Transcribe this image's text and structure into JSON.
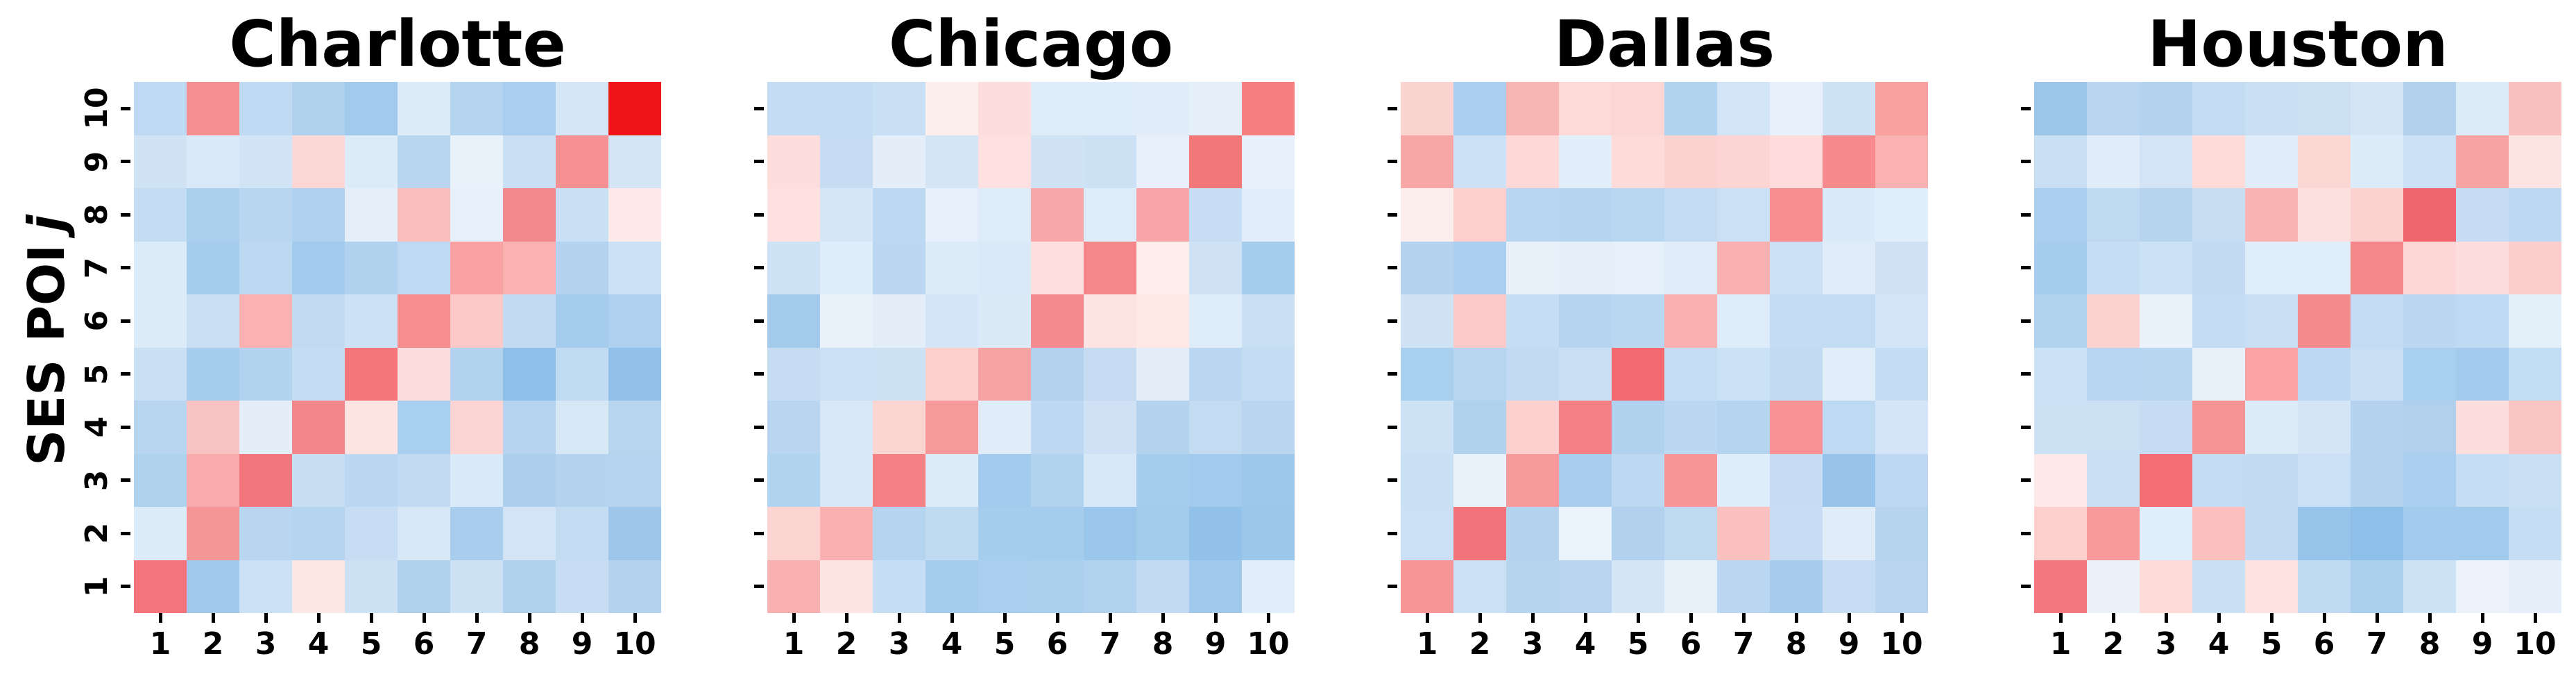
{
  "figure": {
    "ylabel": {
      "text": "SES POI",
      "variable": "j"
    },
    "x_tick_labels": [
      "1",
      "2",
      "3",
      "4",
      "5",
      "6",
      "7",
      "8",
      "9",
      "10"
    ],
    "y_tick_labels": [
      "1",
      "2",
      "3",
      "4",
      "5",
      "6",
      "7",
      "8",
      "9",
      "10"
    ],
    "text_color": "#000000",
    "background_color": "#ffffff"
  },
  "chart_data": {
    "type": "heatmap",
    "grid": false,
    "x_range": [
      1,
      10
    ],
    "y_range": [
      1,
      10
    ],
    "xlabel": "",
    "ylabel": "SES POI j",
    "legend": "none",
    "colormap": {
      "low": "#8ebfe8",
      "mid": "#f7f7f7",
      "high": "#ee1418"
    },
    "cell_order": "rows listed top (j=10) to bottom (j=1); columns i=1..10 left to right; values are sampled cell colors",
    "panels": [
      {
        "city": "Charlotte",
        "cells": [
          [
            "#bed9f2",
            "#f58e90",
            "#bfdaf2",
            "#b0d2ef",
            "#a2caec",
            "#dcebf8",
            "#b5d4f0",
            "#a9ceee",
            "#d5e6f6",
            "#ee1418"
          ],
          [
            "#cfe3f5",
            "#d9e9f7",
            "#d1e4f5",
            "#fbd8d6",
            "#dcebf8",
            "#b9d6f1",
            "#e9f2fb",
            "#c9dff4",
            "#f59194",
            "#d4e6f6"
          ],
          [
            "#c5ddf3",
            "#abd0ee",
            "#b9d6f1",
            "#add1ef",
            "#e5effa",
            "#f9bebd",
            "#e5f0fa",
            "#f4898d",
            "#c9dff4",
            "#fdeae8"
          ],
          [
            "#dcebf8",
            "#a6cdee",
            "#bdd8f1",
            "#a3cbed",
            "#b0d2ef",
            "#bfd9f2",
            "#f9a2a3",
            "#fab1b1",
            "#b3d3f0",
            "#cce1f5"
          ],
          [
            "#dcebf8",
            "#c8dff4",
            "#f9b1b2",
            "#c2dbf3",
            "#cce1f5",
            "#f68e90",
            "#fcc9c8",
            "#c2dbf3",
            "#a5cced",
            "#aed1ef"
          ],
          [
            "#c9e0f4",
            "#a6cdee",
            "#b2d3ef",
            "#c5ddf3",
            "#f4767b",
            "#fddddd",
            "#b2d3ef",
            "#8dbfe8",
            "#c1dbf2",
            "#91c1e9"
          ],
          [
            "#b8d5f0",
            "#f9c3c4",
            "#e4eef9",
            "#f3868b",
            "#fde3e2",
            "#a9cfee",
            "#fcd4d3",
            "#b6d4f0",
            "#d6e7f6",
            "#b8d5f0"
          ],
          [
            "#aed1ee",
            "#f8abad",
            "#f3767c",
            "#c8def3",
            "#bcd7f1",
            "#c2daf2",
            "#dbeaf8",
            "#accfee",
            "#b4d3ef",
            "#b6d4f0"
          ],
          [
            "#dcebf8",
            "#f69598",
            "#b9d5f0",
            "#b5d4f0",
            "#c6ddf3",
            "#d6e7f6",
            "#a9ceed",
            "#d2e4f5",
            "#c4dcf2",
            "#9dc6ea"
          ],
          [
            "#f3747b",
            "#a2c9eb",
            "#cbe0f4",
            "#fde7e5",
            "#cde1f4",
            "#b0d1ee",
            "#cde1f4",
            "#b0d1ee",
            "#c6ddf3",
            "#b5d3ef"
          ]
        ]
      },
      {
        "city": "Chicago",
        "cells": [
          [
            "#c5ddf4",
            "#c5ddf4",
            "#c9dff3",
            "#fbeeec",
            "#fddddd",
            "#ddecf8",
            "#ddecf8",
            "#e0edf9",
            "#e4effa",
            "#f57e80"
          ],
          [
            "#fedddd",
            "#c5dcf3",
            "#e3eef9",
            "#d4e6f6",
            "#fee0e0",
            "#cfe3f5",
            "#cde1f5",
            "#e7f0fa",
            "#f37679",
            "#e8f1fb"
          ],
          [
            "#fee1e0",
            "#d5e6f6",
            "#bdd8f1",
            "#e7f0fa",
            "#ddecf8",
            "#f9a8a9",
            "#deecf8",
            "#f9a4a6",
            "#c6ddf4",
            "#e2eef9"
          ],
          [
            "#cee2f5",
            "#dfecf9",
            "#bcd7f1",
            "#dcebf8",
            "#d9e9f7",
            "#fddfde",
            "#f5878a",
            "#fdeeec",
            "#cfe2f5",
            "#a7cdec"
          ],
          [
            "#a3c9eb",
            "#e9f1fa",
            "#e3eef9",
            "#d3e5f6",
            "#dceaf8",
            "#f48a8d",
            "#fde3e1",
            "#fde8e6",
            "#dfecf9",
            "#c9dff3"
          ],
          [
            "#c5dcf2",
            "#cbe0f4",
            "#cde1f4",
            "#fbd0cd",
            "#f7a2a3",
            "#b3d2ef",
            "#c5dcf2",
            "#e3eef9",
            "#bbd6f0",
            "#c4dcf2"
          ],
          [
            "#b9d5f0",
            "#d8e8f7",
            "#fbd5d2",
            "#f5999b",
            "#e0edf9",
            "#bed8f1",
            "#cfe2f5",
            "#b4d3ef",
            "#c4dcf2",
            "#b9d5f0"
          ],
          [
            "#b0d3f0",
            "#d8e8f7",
            "#f58185",
            "#dcebf8",
            "#a3cbed",
            "#b2d4f0",
            "#d7e8f7",
            "#a5cced",
            "#a2caec",
            "#9dc7eb"
          ],
          [
            "#fcd5d3",
            "#f9b0b1",
            "#b5d4f0",
            "#c0daf2",
            "#a7cdee",
            "#a6cced",
            "#9bc6eb",
            "#a3cbec",
            "#92c1e9",
            "#9cc6ea"
          ],
          [
            "#f9b0b1",
            "#fde5e3",
            "#c6def4",
            "#a6cced",
            "#a9ceee",
            "#abd0ee",
            "#b2d3ef",
            "#c2dbf2",
            "#a1c9ec",
            "#e1edf9"
          ]
        ]
      },
      {
        "city": "Dallas",
        "cells": [
          [
            "#fbd4d2",
            "#aacfee",
            "#f9b5b4",
            "#fdd9d8",
            "#fbd6d4",
            "#b0d3f0",
            "#d2e5f6",
            "#e7f0fa",
            "#cfe3f6",
            "#f8a09f"
          ],
          [
            "#f8a7a7",
            "#cce1f5",
            "#fdd8d7",
            "#e2eef9",
            "#fddbd9",
            "#fbd2d0",
            "#fcd4d3",
            "#fddcdb",
            "#f68a8c",
            "#f9b1b1"
          ],
          [
            "#fceeec",
            "#fccfcd",
            "#b8d6f1",
            "#b5d4f0",
            "#b9d7f1",
            "#c3dcf3",
            "#cbe0f5",
            "#f78d8e",
            "#daeaf8",
            "#e0eef9"
          ],
          [
            "#b5d3ef",
            "#abd0ef",
            "#e8f1fa",
            "#e4eff9",
            "#e6f0fa",
            "#e0edf9",
            "#f9b0b0",
            "#cbe0f4",
            "#e0edf9",
            "#cfe2f5"
          ],
          [
            "#cfe3f5",
            "#fccbc9",
            "#c6def3",
            "#b4d4f0",
            "#bad7f1",
            "#f9b0b0",
            "#ddecf8",
            "#c5ddf3",
            "#c3dcf3",
            "#d2e5f6"
          ],
          [
            "#a9cfee",
            "#b8d5f0",
            "#c2dbf2",
            "#c9e0f4",
            "#f4696f",
            "#c5def4",
            "#cbe1f5",
            "#c2dbf3",
            "#e1eef9",
            "#c4ddf3"
          ],
          [
            "#cde2f5",
            "#b0d2ef",
            "#fcd0ce",
            "#f58186",
            "#b1d2ef",
            "#bbd7f1",
            "#b4d4f0",
            "#f79395",
            "#bed9f2",
            "#d3e5f6"
          ],
          [
            "#c9dff3",
            "#e9f2fb",
            "#f79a9b",
            "#a9ceed",
            "#bdd8f1",
            "#f79597",
            "#dfecf9",
            "#c5dcf2",
            "#97c2e9",
            "#bed8f1"
          ],
          [
            "#cbe0f4",
            "#f2737a",
            "#b5d3ef",
            "#eaf2fb",
            "#b2d1ef",
            "#bfd9f1",
            "#fac1bf",
            "#c6ddf3",
            "#e0edf9",
            "#b7d4ef"
          ],
          [
            "#f79597",
            "#cbe0f4",
            "#b7d4ef",
            "#b9d5f0",
            "#d4e5f6",
            "#e8f1fa",
            "#bbd6f0",
            "#a8cdec",
            "#c6ddf3",
            "#b9d5f0"
          ]
        ]
      },
      {
        "city": "Houston",
        "cells": [
          [
            "#9cc5ea",
            "#b9d5f0",
            "#b4d3ef",
            "#c4dcf2",
            "#c9dff3",
            "#cce0f4",
            "#d4e5f6",
            "#b2d1ef",
            "#dcebf8",
            "#f9c2c1"
          ],
          [
            "#c9dff3",
            "#e0edf9",
            "#d2e4f5",
            "#fcdbd9",
            "#e0edf9",
            "#fbd7d4",
            "#dcebf8",
            "#cbe0f4",
            "#f7a2a3",
            "#fce4e2"
          ],
          [
            "#aaceed",
            "#bfd9f1",
            "#b7d4ef",
            "#c8def3",
            "#f9b3b3",
            "#fce0de",
            "#fbd2d0",
            "#f1666c",
            "#c5dcf2",
            "#bed8f1"
          ],
          [
            "#a6ccee",
            "#c6def4",
            "#cbe1f5",
            "#c2dbf3",
            "#e0eef9",
            "#e0eef9",
            "#f5878b",
            "#fcd7d6",
            "#fddddd",
            "#fbcecd"
          ],
          [
            "#b1d3ef",
            "#fcd2d0",
            "#e9f2fb",
            "#c5ddf4",
            "#c8dff4",
            "#f68b8e",
            "#c3dcf3",
            "#bcd8f1",
            "#bed9f2",
            "#e3eff9"
          ],
          [
            "#cbe1f5",
            "#b7d5f0",
            "#b9d6f1",
            "#e7f1fa",
            "#f9a3a4",
            "#bdd8f1",
            "#c9e0f4",
            "#a9cfee",
            "#a4cbed",
            "#c2dcf3"
          ],
          [
            "#cde1f4",
            "#cce0f4",
            "#c5dcf2",
            "#f69395",
            "#dcebf8",
            "#d4e5f6",
            "#b5d3ef",
            "#b0d0ee",
            "#fcdedd",
            "#f9c4c2"
          ],
          [
            "#fde9e7",
            "#c9dff4",
            "#f46d72",
            "#c4dcf3",
            "#c2dbf2",
            "#cbe0f4",
            "#b3d3f0",
            "#aacfee",
            "#c6def4",
            "#c9dff4"
          ],
          [
            "#fccfcc",
            "#f89a9c",
            "#e0eef9",
            "#fbc0bd",
            "#c2dbf2",
            "#96c4ea",
            "#8ebfe8",
            "#a3cbed",
            "#a2caec",
            "#c6def3"
          ],
          [
            "#f4787e",
            "#eaf1f9",
            "#fcdbd9",
            "#c9dff4",
            "#fde2e0",
            "#c0daf2",
            "#abd0ee",
            "#cde2f5",
            "#ecf2f9",
            "#e4eff9"
          ]
        ]
      }
    ]
  }
}
